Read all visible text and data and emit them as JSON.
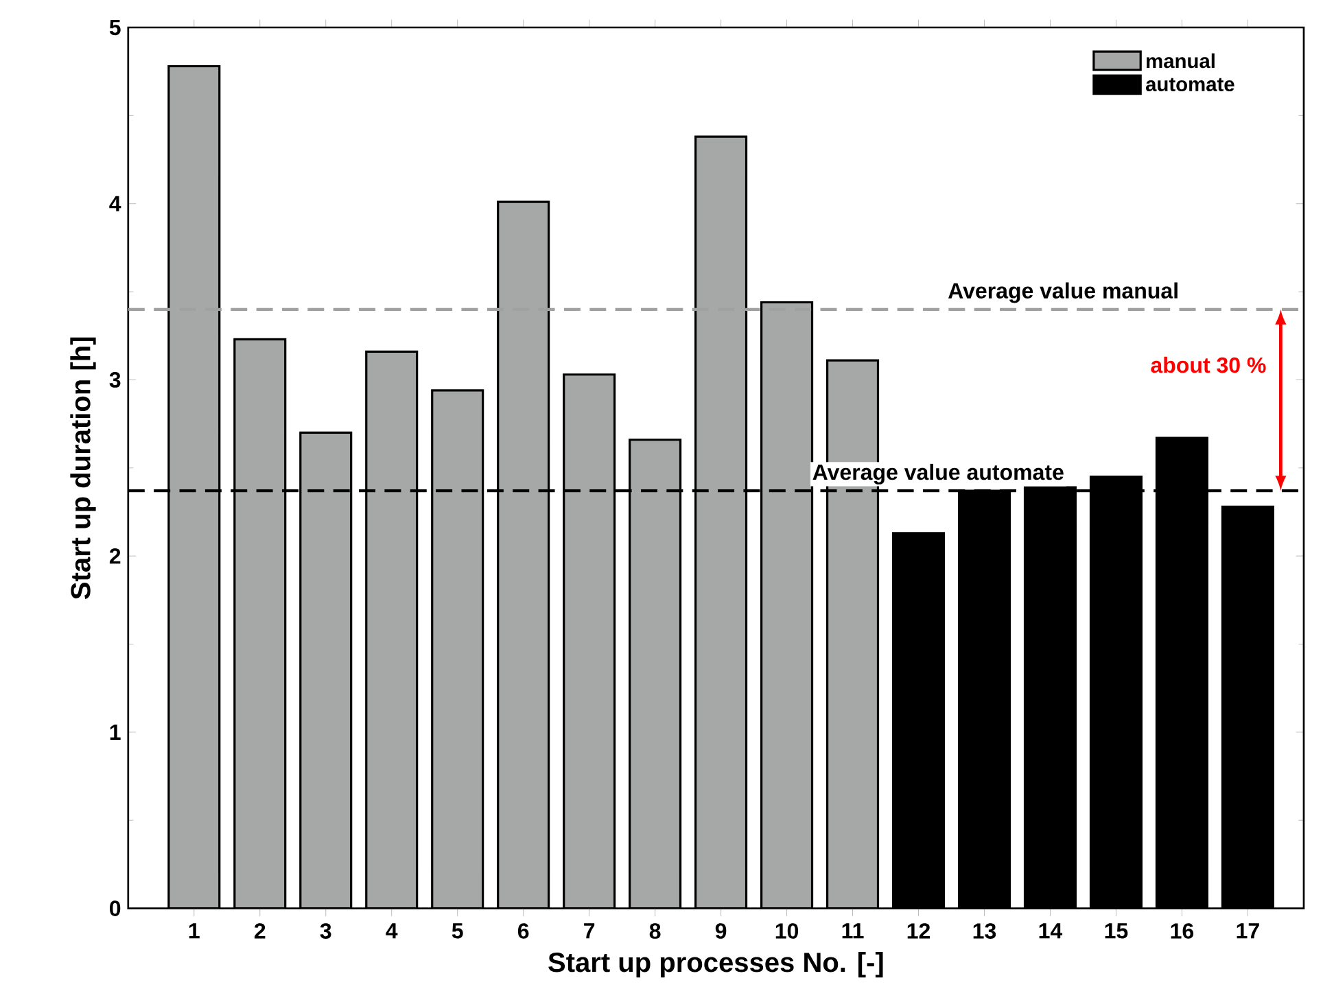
{
  "chart_data": {
    "type": "bar",
    "xlabel": "Start up processes No. [-]",
    "ylabel": "Start up duration [h]",
    "categories": [
      "1",
      "2",
      "3",
      "4",
      "5",
      "6",
      "7",
      "8",
      "9",
      "10",
      "11",
      "12",
      "13",
      "14",
      "15",
      "16",
      "17"
    ],
    "series": [
      {
        "name": "manual",
        "color": "#a6a8a8",
        "values": [
          4.78,
          3.23,
          2.7,
          3.16,
          2.94,
          4.01,
          3.03,
          2.66,
          4.38,
          3.44,
          3.11,
          null,
          null,
          null,
          null,
          null,
          null
        ]
      },
      {
        "name": "automate",
        "color": "#000000",
        "values": [
          null,
          null,
          null,
          null,
          null,
          null,
          null,
          null,
          null,
          null,
          null,
          2.13,
          2.37,
          2.39,
          2.45,
          2.67,
          2.28
        ]
      }
    ],
    "ylim": [
      0,
      5
    ],
    "yticks": [
      0,
      1,
      2,
      3,
      4,
      5
    ],
    "legend": "top right",
    "ref_lines": [
      {
        "axis": "y",
        "value": 3.4,
        "label": "Average value manual",
        "color": "#a0a0a0",
        "line_style": "dashed"
      },
      {
        "axis": "y",
        "value": 2.37,
        "label": "Average value automate",
        "color": "#000000",
        "line_style": "dashed"
      }
    ],
    "annotations": [
      "about 30 %"
    ]
  }
}
